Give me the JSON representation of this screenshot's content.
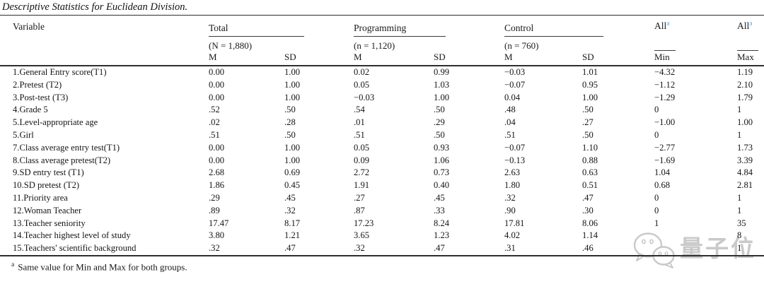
{
  "title": "Descriptive Statistics for Euclidean Division.",
  "accent_color": "#5b9bd5",
  "table": {
    "variable_header": "Variable",
    "groups": [
      {
        "label": "Total",
        "sub": "(N = 1,880)",
        "col1": "M",
        "col2": "SD"
      },
      {
        "label": "Programming",
        "sub": "(n = 1,120)",
        "col1": "M",
        "col2": "SD"
      },
      {
        "label": "Control",
        "sub": "(n = 760)",
        "col1": "M",
        "col2": "SD"
      },
      {
        "label": "All",
        "sup": "a",
        "col1": "Min"
      },
      {
        "label": "All",
        "sup": "a",
        "col1": "Max"
      }
    ],
    "rows": [
      {
        "variable": "1.General Entry score(T1)",
        "values": [
          "0.00",
          "1.00",
          "0.02",
          "0.99",
          "−0.03",
          "1.01",
          "−4.32",
          "1.19"
        ]
      },
      {
        "variable": "2.Pretest (T2)",
        "values": [
          "0.00",
          "1.00",
          "0.05",
          "1.03",
          "−0.07",
          "0.95",
          "−1.12",
          "2.10"
        ]
      },
      {
        "variable": "3.Post-test (T3)",
        "values": [
          "0.00",
          "1.00",
          "−0.03",
          "1.00",
          "0.04",
          "1.00",
          "−1.29",
          "1.79"
        ]
      },
      {
        "variable": "4.Grade 5",
        "values": [
          ".52",
          ".50",
          ".54",
          ".50",
          ".48",
          ".50",
          "0",
          "1"
        ]
      },
      {
        "variable": "5.Level-appropriate age",
        "values": [
          ".02",
          ".28",
          ".01",
          ".29",
          ".04",
          ".27",
          "−1.00",
          "1.00"
        ]
      },
      {
        "variable": "5.Girl",
        "values": [
          ".51",
          ".50",
          ".51",
          ".50",
          ".51",
          ".50",
          "0",
          "1"
        ]
      },
      {
        "variable": "7.Class average entry test(T1)",
        "values": [
          "0.00",
          "1.00",
          "0.05",
          "0.93",
          "−0.07",
          "1.10",
          "−2.77",
          "1.73"
        ]
      },
      {
        "variable": "8.Class average pretest(T2)",
        "values": [
          "0.00",
          "1.00",
          "0.09",
          "1.06",
          "−0.13",
          "0.88",
          "−1.69",
          "3.39"
        ]
      },
      {
        "variable": "9.SD entry test (T1)",
        "values": [
          "2.68",
          "0.69",
          "2.72",
          "0.73",
          "2.63",
          "0.63",
          "1.04",
          "4.84"
        ]
      },
      {
        "variable": "10.SD pretest (T2)",
        "values": [
          "1.86",
          "0.45",
          "1.91",
          "0.40",
          "1.80",
          "0.51",
          "0.68",
          "2.81"
        ]
      },
      {
        "variable": "11.Priority area",
        "values": [
          ".29",
          ".45",
          ".27",
          ".45",
          ".32",
          ".47",
          "0",
          "1"
        ]
      },
      {
        "variable": "12.Woman Teacher",
        "values": [
          ".89",
          ".32",
          ".87",
          ".33",
          ".90",
          ".30",
          "0",
          "1"
        ]
      },
      {
        "variable": "13.Teacher seniority",
        "values": [
          "17.47",
          "8.17",
          "17.23",
          "8.24",
          "17.81",
          "8.06",
          "1",
          "35"
        ]
      },
      {
        "variable": "14.Teacher highest level of study",
        "values": [
          "3.80",
          "1.21",
          "3.65",
          "1.23",
          "4.02",
          "1.14",
          "",
          "8"
        ]
      },
      {
        "variable": "15.Teachers' scientific background",
        "values": [
          ".32",
          ".47",
          ".32",
          ".47",
          ".31",
          ".46",
          "",
          "1"
        ]
      }
    ]
  },
  "footnote": {
    "marker": "a",
    "text": "Same value for Min and Max for both groups."
  },
  "watermark": {
    "icon": "wechat-chat-bubbles-icon",
    "text": "量子位",
    "color": "#c9c9c9"
  }
}
